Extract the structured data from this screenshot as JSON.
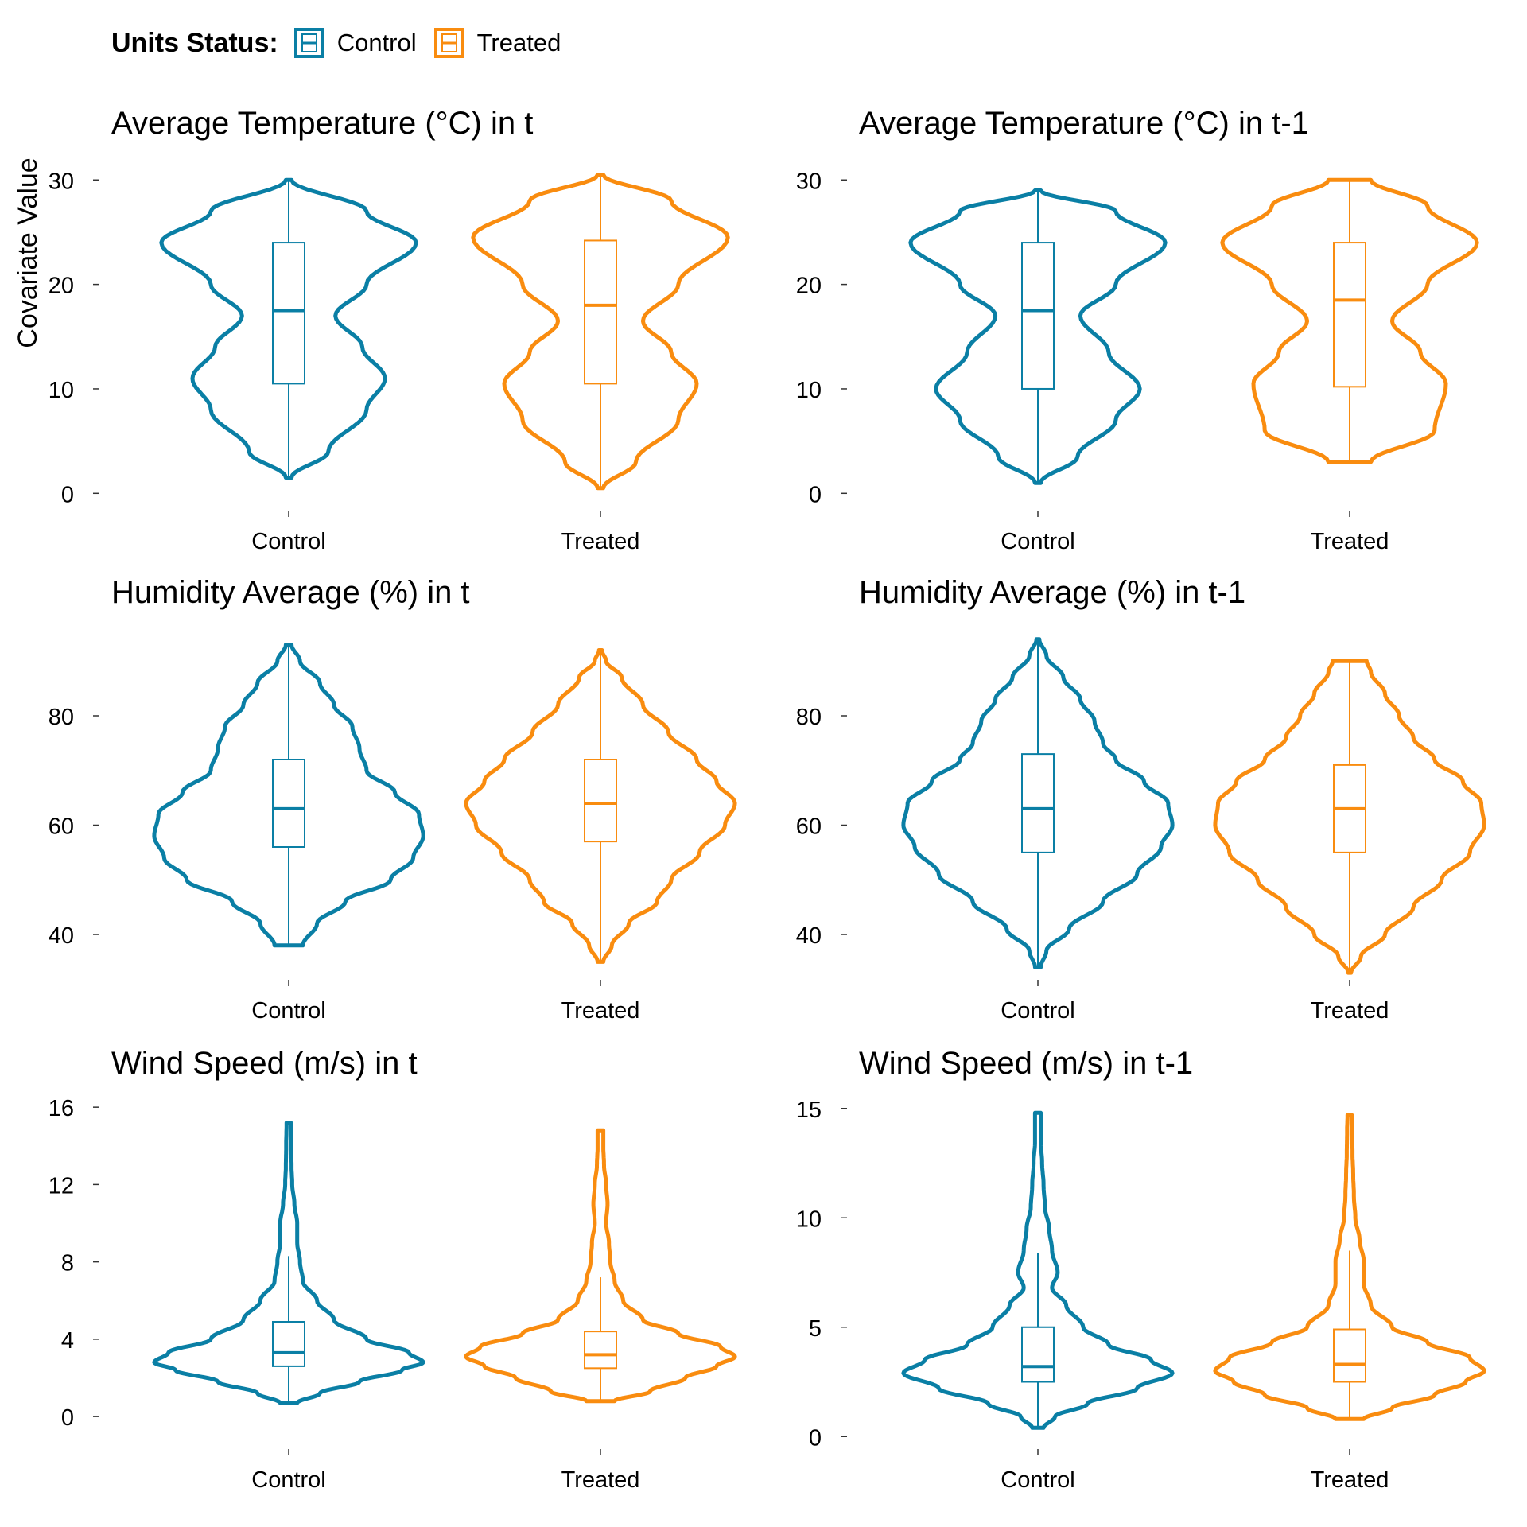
{
  "legend": {
    "title": "Units Status:",
    "items": [
      {
        "label": "Control",
        "color": "#0A7FA5"
      },
      {
        "label": "Treated",
        "color": "#F98C0F"
      }
    ]
  },
  "y_axis_label": "Covariate Value",
  "chart_data": [
    {
      "type": "violin",
      "title": "Average Temperature (°C) in t",
      "categories": [
        "Control",
        "Treated"
      ],
      "ylim": [
        -1.5,
        32
      ],
      "yticks": [
        0,
        10,
        20,
        30
      ],
      "grid": false,
      "series": [
        {
          "name": "Control",
          "color": "#0A7FA5",
          "min": 1.5,
          "max": 30,
          "box": {
            "q1": 10.5,
            "median": 17.5,
            "q3": 24,
            "whisker_low": 1.5,
            "whisker_high": 30
          },
          "density": [
            [
              1.5,
              0.02
            ],
            [
              4,
              0.28
            ],
            [
              8,
              0.55
            ],
            [
              11,
              0.68
            ],
            [
              14,
              0.52
            ],
            [
              17,
              0.33
            ],
            [
              20,
              0.55
            ],
            [
              24,
              0.9
            ],
            [
              27,
              0.55
            ],
            [
              30,
              0.02
            ]
          ]
        },
        {
          "name": "Treated",
          "color": "#F98C0F",
          "min": 0.5,
          "max": 30.5,
          "box": {
            "q1": 10.5,
            "median": 18,
            "q3": 24.2,
            "whisker_low": 0.5,
            "whisker_high": 30.5
          },
          "density": [
            [
              0.5,
              0.02
            ],
            [
              3,
              0.25
            ],
            [
              7,
              0.55
            ],
            [
              10.5,
              0.68
            ],
            [
              13.5,
              0.5
            ],
            [
              16.5,
              0.3
            ],
            [
              20,
              0.55
            ],
            [
              24.5,
              0.9
            ],
            [
              28,
              0.5
            ],
            [
              30.5,
              0.02
            ]
          ]
        }
      ]
    },
    {
      "type": "violin",
      "title": "Average Temperature (°C) in t-1",
      "categories": [
        "Control",
        "Treated"
      ],
      "ylim": [
        -1.5,
        32
      ],
      "yticks": [
        0,
        10,
        20,
        30
      ],
      "grid": false,
      "series": [
        {
          "name": "Control",
          "color": "#0A7FA5",
          "min": 1,
          "max": 29,
          "box": {
            "q1": 10,
            "median": 17.5,
            "q3": 24,
            "whisker_low": 1,
            "whisker_high": 29
          },
          "density": [
            [
              1,
              0.02
            ],
            [
              3.5,
              0.28
            ],
            [
              7,
              0.55
            ],
            [
              10,
              0.72
            ],
            [
              13.5,
              0.5
            ],
            [
              17,
              0.3
            ],
            [
              20,
              0.55
            ],
            [
              24,
              0.9
            ],
            [
              27,
              0.55
            ],
            [
              29,
              0.02
            ]
          ]
        },
        {
          "name": "Treated",
          "color": "#F98C0F",
          "min": 3,
          "max": 30,
          "box": {
            "q1": 10.2,
            "median": 18.5,
            "q3": 24,
            "whisker_low": 3,
            "whisker_high": 30
          },
          "density": [
            [
              3,
              0.15
            ],
            [
              6,
              0.6
            ],
            [
              10.5,
              0.68
            ],
            [
              13.5,
              0.5
            ],
            [
              16.5,
              0.3
            ],
            [
              20,
              0.55
            ],
            [
              24,
              0.9
            ],
            [
              27.5,
              0.55
            ],
            [
              30,
              0.15
            ]
          ]
        }
      ]
    },
    {
      "type": "violin",
      "title": "Humidity Average (%) in t",
      "categories": [
        "Control",
        "Treated"
      ],
      "ylim": [
        32,
        96
      ],
      "yticks": [
        40,
        60,
        80
      ],
      "grid": false,
      "series": [
        {
          "name": "Control",
          "color": "#0A7FA5",
          "min": 38,
          "max": 93,
          "box": {
            "q1": 56,
            "median": 63,
            "q3": 72,
            "whisker_low": 38,
            "whisker_high": 93
          },
          "density": [
            [
              38,
              0.1
            ],
            [
              42,
              0.2
            ],
            [
              46,
              0.4
            ],
            [
              50,
              0.72
            ],
            [
              54,
              0.88
            ],
            [
              58,
              0.95
            ],
            [
              62,
              0.92
            ],
            [
              66,
              0.75
            ],
            [
              70,
              0.55
            ],
            [
              74,
              0.5
            ],
            [
              78,
              0.45
            ],
            [
              82,
              0.32
            ],
            [
              86,
              0.22
            ],
            [
              90,
              0.08
            ],
            [
              93,
              0.02
            ]
          ]
        },
        {
          "name": "Treated",
          "color": "#F98C0F",
          "min": 35,
          "max": 92,
          "box": {
            "q1": 57,
            "median": 64,
            "q3": 72,
            "whisker_low": 35,
            "whisker_high": 92
          },
          "density": [
            [
              35,
              0.02
            ],
            [
              38,
              0.08
            ],
            [
              42,
              0.2
            ],
            [
              46,
              0.4
            ],
            [
              50,
              0.5
            ],
            [
              55,
              0.7
            ],
            [
              60,
              0.88
            ],
            [
              64,
              0.95
            ],
            [
              68,
              0.82
            ],
            [
              72,
              0.68
            ],
            [
              77,
              0.48
            ],
            [
              82,
              0.3
            ],
            [
              87,
              0.15
            ],
            [
              90,
              0.04
            ],
            [
              92,
              0.01
            ]
          ]
        }
      ]
    },
    {
      "type": "violin",
      "title": "Humidity Average (%) in t-1",
      "categories": [
        "Control",
        "Treated"
      ],
      "ylim": [
        32,
        96
      ],
      "yticks": [
        40,
        60,
        80
      ],
      "grid": false,
      "series": [
        {
          "name": "Control",
          "color": "#0A7FA5",
          "min": 34,
          "max": 94,
          "box": {
            "q1": 55,
            "median": 63,
            "q3": 73,
            "whisker_low": 34,
            "whisker_high": 94
          },
          "density": [
            [
              34,
              0.02
            ],
            [
              37,
              0.06
            ],
            [
              41,
              0.22
            ],
            [
              46,
              0.46
            ],
            [
              51,
              0.7
            ],
            [
              56,
              0.87
            ],
            [
              60,
              0.95
            ],
            [
              64,
              0.92
            ],
            [
              68,
              0.75
            ],
            [
              72,
              0.55
            ],
            [
              75,
              0.46
            ],
            [
              79,
              0.4
            ],
            [
              83,
              0.3
            ],
            [
              87,
              0.18
            ],
            [
              91,
              0.06
            ],
            [
              94,
              0.01
            ]
          ]
        },
        {
          "name": "Treated",
          "color": "#F98C0F",
          "min": 33,
          "max": 90,
          "box": {
            "q1": 55,
            "median": 63,
            "q3": 71,
            "whisker_low": 33,
            "whisker_high": 90
          },
          "density": [
            [
              33,
              0.01
            ],
            [
              36,
              0.08
            ],
            [
              40,
              0.25
            ],
            [
              45,
              0.45
            ],
            [
              50,
              0.65
            ],
            [
              55,
              0.85
            ],
            [
              60,
              0.95
            ],
            [
              64,
              0.93
            ],
            [
              68,
              0.8
            ],
            [
              72,
              0.6
            ],
            [
              76,
              0.45
            ],
            [
              80,
              0.35
            ],
            [
              84,
              0.25
            ],
            [
              88,
              0.15
            ],
            [
              90,
              0.12
            ]
          ]
        }
      ]
    },
    {
      "type": "violin",
      "title": "Wind Speed (m/s) in t",
      "categories": [
        "Control",
        "Treated"
      ],
      "ylim": [
        -1.6,
        16.5
      ],
      "yticks": [
        0,
        4,
        8,
        12,
        16
      ],
      "grid": false,
      "series": [
        {
          "name": "Control",
          "color": "#0A7FA5",
          "min": 0.7,
          "max": 15.2,
          "box": {
            "q1": 2.6,
            "median": 3.3,
            "q3": 4.9,
            "whisker_low": 0.7,
            "whisker_high": 8.3
          },
          "density": [
            [
              0.7,
              0.06
            ],
            [
              1.2,
              0.22
            ],
            [
              1.8,
              0.5
            ],
            [
              2.4,
              0.8
            ],
            [
              2.8,
              0.95
            ],
            [
              3.3,
              0.85
            ],
            [
              4,
              0.55
            ],
            [
              5,
              0.32
            ],
            [
              6,
              0.2
            ],
            [
              7,
              0.1
            ],
            [
              8,
              0.08
            ],
            [
              9,
              0.06
            ],
            [
              10,
              0.06
            ],
            [
              11,
              0.04
            ],
            [
              12,
              0.025
            ],
            [
              13,
              0.02
            ],
            [
              14,
              0.018
            ],
            [
              15.2,
              0.015
            ]
          ]
        },
        {
          "name": "Treated",
          "color": "#F98C0F",
          "min": 0.8,
          "max": 14.8,
          "box": {
            "q1": 2.5,
            "median": 3.2,
            "q3": 4.4,
            "whisker_low": 0.8,
            "whisker_high": 7.2
          },
          "density": [
            [
              0.8,
              0.1
            ],
            [
              1.3,
              0.35
            ],
            [
              2,
              0.6
            ],
            [
              2.6,
              0.82
            ],
            [
              3.1,
              0.95
            ],
            [
              3.6,
              0.85
            ],
            [
              4.3,
              0.55
            ],
            [
              5,
              0.3
            ],
            [
              6,
              0.16
            ],
            [
              7,
              0.1
            ],
            [
              8,
              0.07
            ],
            [
              9,
              0.06
            ],
            [
              10,
              0.04
            ],
            [
              11,
              0.05
            ],
            [
              12,
              0.04
            ],
            [
              13,
              0.025
            ],
            [
              14,
              0.02
            ],
            [
              14.8,
              0.02
            ]
          ]
        }
      ]
    },
    {
      "type": "violin",
      "title": "Wind Speed (m/s) in t-1",
      "categories": [
        "Control",
        "Treated"
      ],
      "ylim": [
        -0.5,
        15.5
      ],
      "yticks": [
        0,
        5,
        10,
        15
      ],
      "grid": false,
      "series": [
        {
          "name": "Control",
          "color": "#0A7FA5",
          "min": 0.4,
          "max": 14.8,
          "box": {
            "q1": 2.5,
            "median": 3.2,
            "q3": 5,
            "whisker_low": 0.4,
            "whisker_high": 8.4
          },
          "density": [
            [
              0.4,
              0.04
            ],
            [
              0.9,
              0.12
            ],
            [
              1.5,
              0.35
            ],
            [
              2.2,
              0.7
            ],
            [
              2.9,
              0.95
            ],
            [
              3.5,
              0.8
            ],
            [
              4.2,
              0.5
            ],
            [
              5,
              0.32
            ],
            [
              6,
              0.2
            ],
            [
              6.8,
              0.1
            ],
            [
              7.5,
              0.14
            ],
            [
              8.5,
              0.1
            ],
            [
              9.5,
              0.08
            ],
            [
              10.5,
              0.05
            ],
            [
              11.5,
              0.04
            ],
            [
              12.5,
              0.03
            ],
            [
              13.5,
              0.02
            ],
            [
              14.8,
              0.02
            ]
          ]
        },
        {
          "name": "Treated",
          "color": "#F98C0F",
          "min": 0.8,
          "max": 14.7,
          "box": {
            "q1": 2.5,
            "median": 3.3,
            "q3": 4.9,
            "whisker_low": 0.8,
            "whisker_high": 8.5
          },
          "density": [
            [
              0.8,
              0.1
            ],
            [
              1.3,
              0.3
            ],
            [
              1.9,
              0.6
            ],
            [
              2.5,
              0.82
            ],
            [
              3,
              0.95
            ],
            [
              3.6,
              0.85
            ],
            [
              4.3,
              0.55
            ],
            [
              5,
              0.3
            ],
            [
              6,
              0.15
            ],
            [
              7,
              0.1
            ],
            [
              8,
              0.1
            ],
            [
              9,
              0.07
            ],
            [
              10,
              0.04
            ],
            [
              11,
              0.03
            ],
            [
              12,
              0.025
            ],
            [
              13,
              0.02
            ],
            [
              14,
              0.018
            ],
            [
              14.7,
              0.015
            ]
          ]
        }
      ]
    }
  ]
}
